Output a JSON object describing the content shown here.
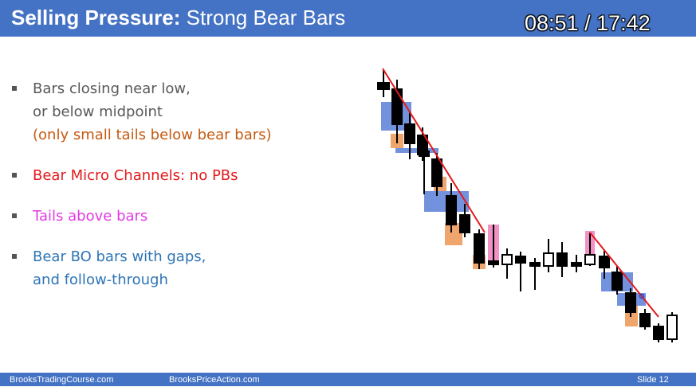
{
  "header": {
    "title_bold": "Selling Pressure:",
    "title_rest": " Strong Bear Bars",
    "timer": "08:51 / 17:42"
  },
  "bullets": [
    {
      "lines": [
        "Bars closing near low,",
        "or below midpoint"
      ],
      "color": "#595959",
      "extra": "(only small tails below bear bars)",
      "extra_color": "#c55a11"
    },
    {
      "lines": [
        "Bear Micro Channels: no PBs"
      ],
      "color": "#e31a1c"
    },
    {
      "lines": [
        "Tails above bars"
      ],
      "color": "#e23be2"
    },
    {
      "lines": [
        "Bear BO bars with gaps,",
        "and follow-through"
      ],
      "color": "#2e75b6"
    }
  ],
  "footer": {
    "left": "BrooksTradingCourse.com",
    "center": "BrooksPriceAction.com",
    "right": "Slide  12"
  },
  "colors": {
    "accent": "#4472c4",
    "bear_bar": "#000000",
    "bull_bar": "#ffffff",
    "highlight_blue": "#5b7fd8",
    "highlight_orange": "#f0a56c",
    "highlight_pink": "#f291c6",
    "trendline": "#e31a1c"
  }
}
